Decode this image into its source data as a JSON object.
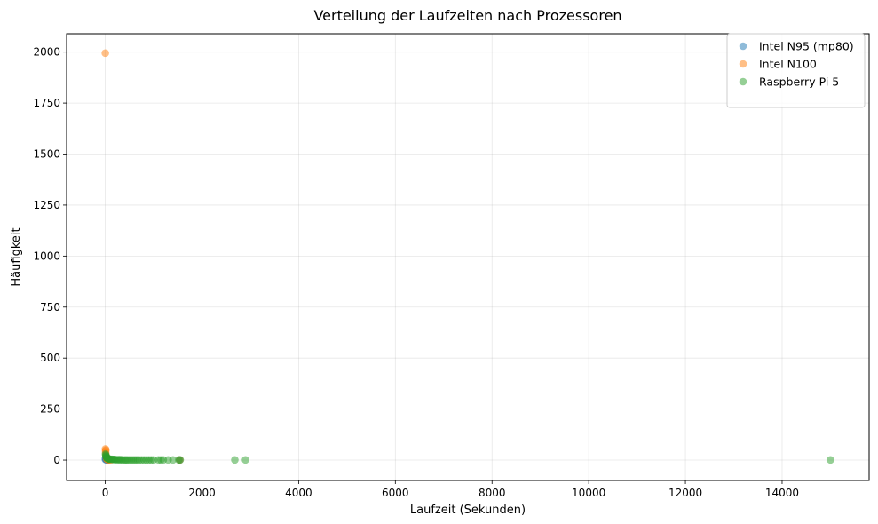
{
  "chart_data": {
    "type": "scatter",
    "title": "Verteilung der Laufzeiten nach Prozessoren",
    "xlabel": "Laufzeit (Sekunden)",
    "ylabel": "Häufigkeit",
    "xlim": [
      -800,
      15800
    ],
    "ylim": [
      -100,
      2090
    ],
    "xticks": [
      0,
      2000,
      4000,
      6000,
      8000,
      10000,
      12000,
      14000
    ],
    "xtick_labels": [
      "0",
      "2000",
      "4000",
      "6000",
      "8000",
      "10000",
      "12000",
      "14000"
    ],
    "yticks": [
      0,
      250,
      500,
      750,
      1000,
      1250,
      1500,
      1750,
      2000
    ],
    "ytick_labels": [
      "0",
      "250",
      "500",
      "750",
      "1000",
      "1250",
      "1500",
      "1750",
      "2000"
    ],
    "grid": true,
    "legend_position": "top-right",
    "series": [
      {
        "name": "Intel N95 (mp80)",
        "color": "#1f77b4",
        "points": [
          [
            2,
            3
          ],
          [
            5,
            8
          ],
          [
            10,
            12
          ],
          [
            15,
            5
          ],
          [
            20,
            2
          ],
          [
            30,
            1
          ],
          [
            45,
            1
          ],
          [
            60,
            1
          ],
          [
            1540,
            1
          ]
        ]
      },
      {
        "name": "Intel N100",
        "color": "#ff7f0e",
        "points": [
          [
            1,
            1995
          ],
          [
            3,
            55
          ],
          [
            6,
            45
          ],
          [
            9,
            35
          ],
          [
            12,
            50
          ],
          [
            15,
            25
          ],
          [
            20,
            15
          ],
          [
            25,
            10
          ],
          [
            30,
            5
          ],
          [
            40,
            3
          ],
          [
            60,
            2
          ],
          [
            80,
            1
          ],
          [
            120,
            1
          ],
          [
            1540,
            1
          ]
        ]
      },
      {
        "name": "Raspberry Pi 5",
        "color": "#2ca02c",
        "points": [
          [
            5,
            30
          ],
          [
            10,
            25
          ],
          [
            15,
            20
          ],
          [
            20,
            18
          ],
          [
            25,
            15
          ],
          [
            30,
            12
          ],
          [
            35,
            10
          ],
          [
            40,
            9
          ],
          [
            50,
            8
          ],
          [
            60,
            7
          ],
          [
            70,
            6
          ],
          [
            80,
            5
          ],
          [
            100,
            5
          ],
          [
            120,
            4
          ],
          [
            140,
            4
          ],
          [
            160,
            3
          ],
          [
            180,
            3
          ],
          [
            200,
            3
          ],
          [
            220,
            2
          ],
          [
            250,
            2
          ],
          [
            280,
            2
          ],
          [
            300,
            2
          ],
          [
            330,
            2
          ],
          [
            360,
            1
          ],
          [
            400,
            1
          ],
          [
            430,
            1
          ],
          [
            460,
            1
          ],
          [
            500,
            1
          ],
          [
            540,
            1
          ],
          [
            580,
            1
          ],
          [
            620,
            1
          ],
          [
            660,
            1
          ],
          [
            700,
            1
          ],
          [
            750,
            1
          ],
          [
            800,
            1
          ],
          [
            850,
            1
          ],
          [
            900,
            1
          ],
          [
            950,
            1
          ],
          [
            1000,
            1
          ],
          [
            1100,
            1
          ],
          [
            1150,
            1
          ],
          [
            1200,
            1
          ],
          [
            1300,
            1
          ],
          [
            1400,
            1
          ],
          [
            1520,
            1
          ],
          [
            1550,
            1
          ],
          [
            2680,
            1
          ],
          [
            2900,
            1
          ],
          [
            15000,
            1
          ]
        ]
      }
    ]
  }
}
